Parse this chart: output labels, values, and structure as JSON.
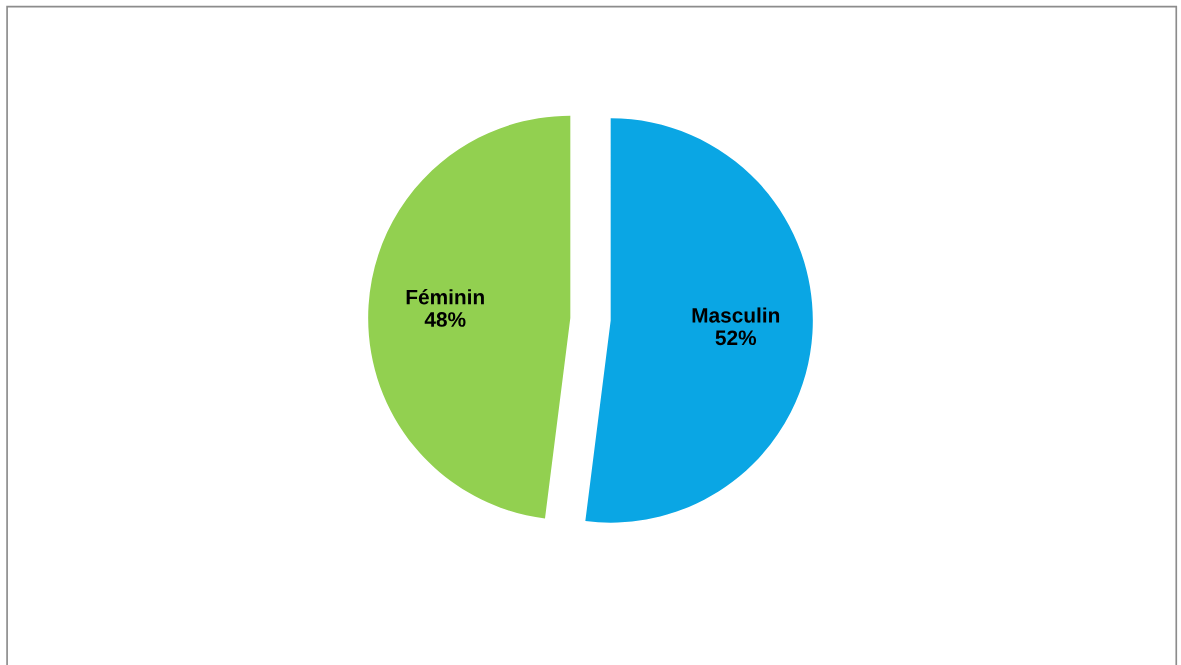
{
  "chart_data": {
    "type": "pie",
    "categories": [
      "Masculin",
      "Féminin"
    ],
    "values": [
      52,
      48
    ],
    "colors": [
      "#0aa6e4",
      "#92d050"
    ],
    "value_labels": [
      "52%",
      "48%"
    ],
    "legend": false
  }
}
